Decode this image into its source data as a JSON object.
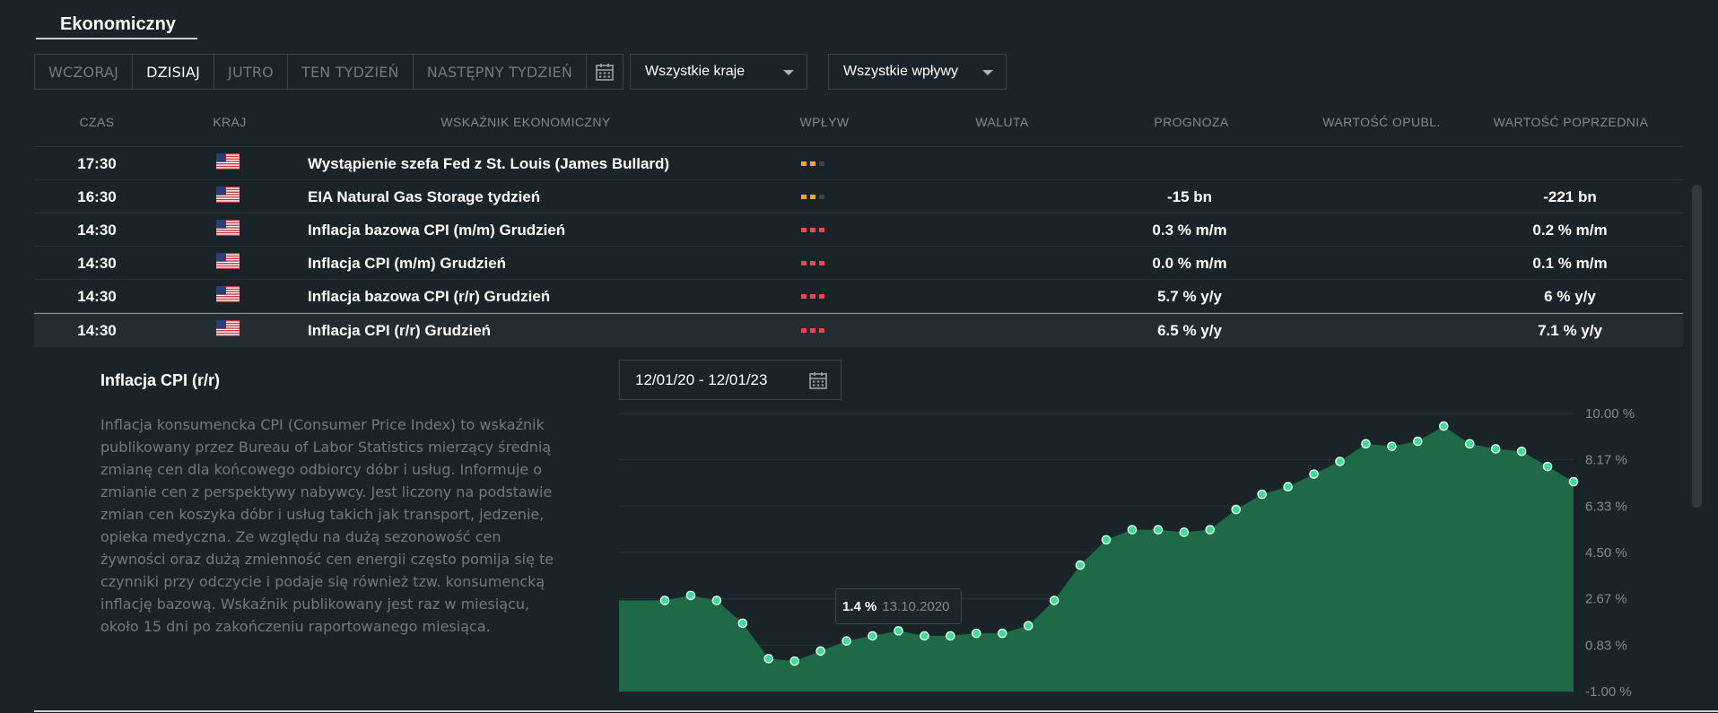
{
  "section": {
    "title": "Ekonomiczny"
  },
  "tabs": [
    {
      "label": "WCZORAJ",
      "active": false
    },
    {
      "label": "DZISIAJ",
      "active": true
    },
    {
      "label": "JUTRO",
      "active": false
    },
    {
      "label": "TEN TYDZIEŃ",
      "active": false
    },
    {
      "label": "NASTĘPNY TYDZIEŃ",
      "active": false
    }
  ],
  "icons": {
    "calendar": "calendar-icon",
    "dropdown": "chevron-down-icon",
    "flag": "us-flag-icon"
  },
  "filters": {
    "countries": "Wszystkie kraje",
    "impact": "Wszystkie wpływy"
  },
  "columns": {
    "time": "CZAS",
    "country": "KRAJ",
    "indicator": "WSKAŹNIK EKONOMICZNY",
    "impact": "WPŁYW",
    "currency": "WALUTA",
    "forecast": "PROGNOZA",
    "published": "WARTOŚĆ OPUBL.",
    "previous": "WARTOŚĆ POPRZEDNIA"
  },
  "events": [
    {
      "time": "17:30",
      "country": "us-flag",
      "name": "Wystąpienie szefa Fed z St. Louis (James Bullard)",
      "impact": 2,
      "forecast": "",
      "previous": ""
    },
    {
      "time": "16:30",
      "country": "us-flag",
      "name": "EIA Natural Gas Storage tydzień",
      "impact": 2,
      "forecast": "-15 bn",
      "previous": "-221 bn"
    },
    {
      "time": "14:30",
      "country": "us-flag",
      "name": "Inflacja bazowa CPI (m/m) Grudzień",
      "impact": 3,
      "forecast": "0.3 % m/m",
      "previous": "0.2 % m/m"
    },
    {
      "time": "14:30",
      "country": "us-flag",
      "name": "Inflacja CPI (m/m) Grudzień",
      "impact": 3,
      "forecast": "0.0 % m/m",
      "previous": "0.1 % m/m"
    },
    {
      "time": "14:30",
      "country": "us-flag",
      "name": "Inflacja bazowa CPI (r/r) Grudzień",
      "impact": 3,
      "forecast": "5.7 % y/y",
      "previous": "6 % y/y"
    },
    {
      "time": "14:30",
      "country": "us-flag",
      "name": "Inflacja CPI (r/r) Grudzień",
      "impact": 3,
      "forecast": "6.5 % y/y",
      "previous": "7.1 % y/y",
      "selected": true
    }
  ],
  "detail": {
    "title": "Inflacja CPI (r/r)",
    "description": "Inflacja konsumencka CPI (Consumer Price Index) to wskaźnik publikowany przez Bureau of Labor Statistics mierzący średnią zmianę cen dla końcowego odbiorcy dóbr i usług. Informuje o zmianie cen z perspektywy nabywcy. Jest liczony na podstawie zmian cen koszyka dóbr i usług takich jak transport, jedzenie, opieka medyczna. Ze względu na dużą sezonowość cen żywności oraz dużą zmienność cen energii często pomija się te czynniki przy odczycie i podaje się również tzw. konsumencką inflację bazową. Wskaźnik publikowany jest raz w miesiącu, około 15 dni po zakończeniu raportowanego miesiąca.",
    "date_range": "12/01/20 - 12/01/23",
    "tooltip": {
      "value": "1.4 %",
      "date": "13.10.2020"
    }
  },
  "colors": {
    "accent": "#1e6a47",
    "point": "#3ddc97",
    "impact_medium": "#f5a623",
    "impact_high": "#e84a4a"
  },
  "chart_data": {
    "type": "area",
    "ylim": [
      -1.0,
      10.0
    ],
    "y_ticks": [
      "10.00 %",
      "8.17 %",
      "6.33 %",
      "4.50 %",
      "2.67 %",
      "0.83 %",
      "-1.00 %"
    ],
    "series": [
      {
        "values": [
          2.6,
          2.8,
          2.6,
          1.7,
          0.3,
          0.2,
          0.6,
          1.0,
          1.2,
          1.4,
          1.2,
          1.2,
          1.3,
          1.3,
          1.6,
          2.6,
          4.0,
          5.0,
          5.4,
          5.4,
          5.3,
          5.4,
          6.2,
          6.8,
          7.1,
          7.6,
          8.1,
          8.8,
          8.7,
          8.9,
          9.5,
          8.8,
          8.6,
          8.5,
          7.9,
          7.3
        ]
      }
    ]
  }
}
